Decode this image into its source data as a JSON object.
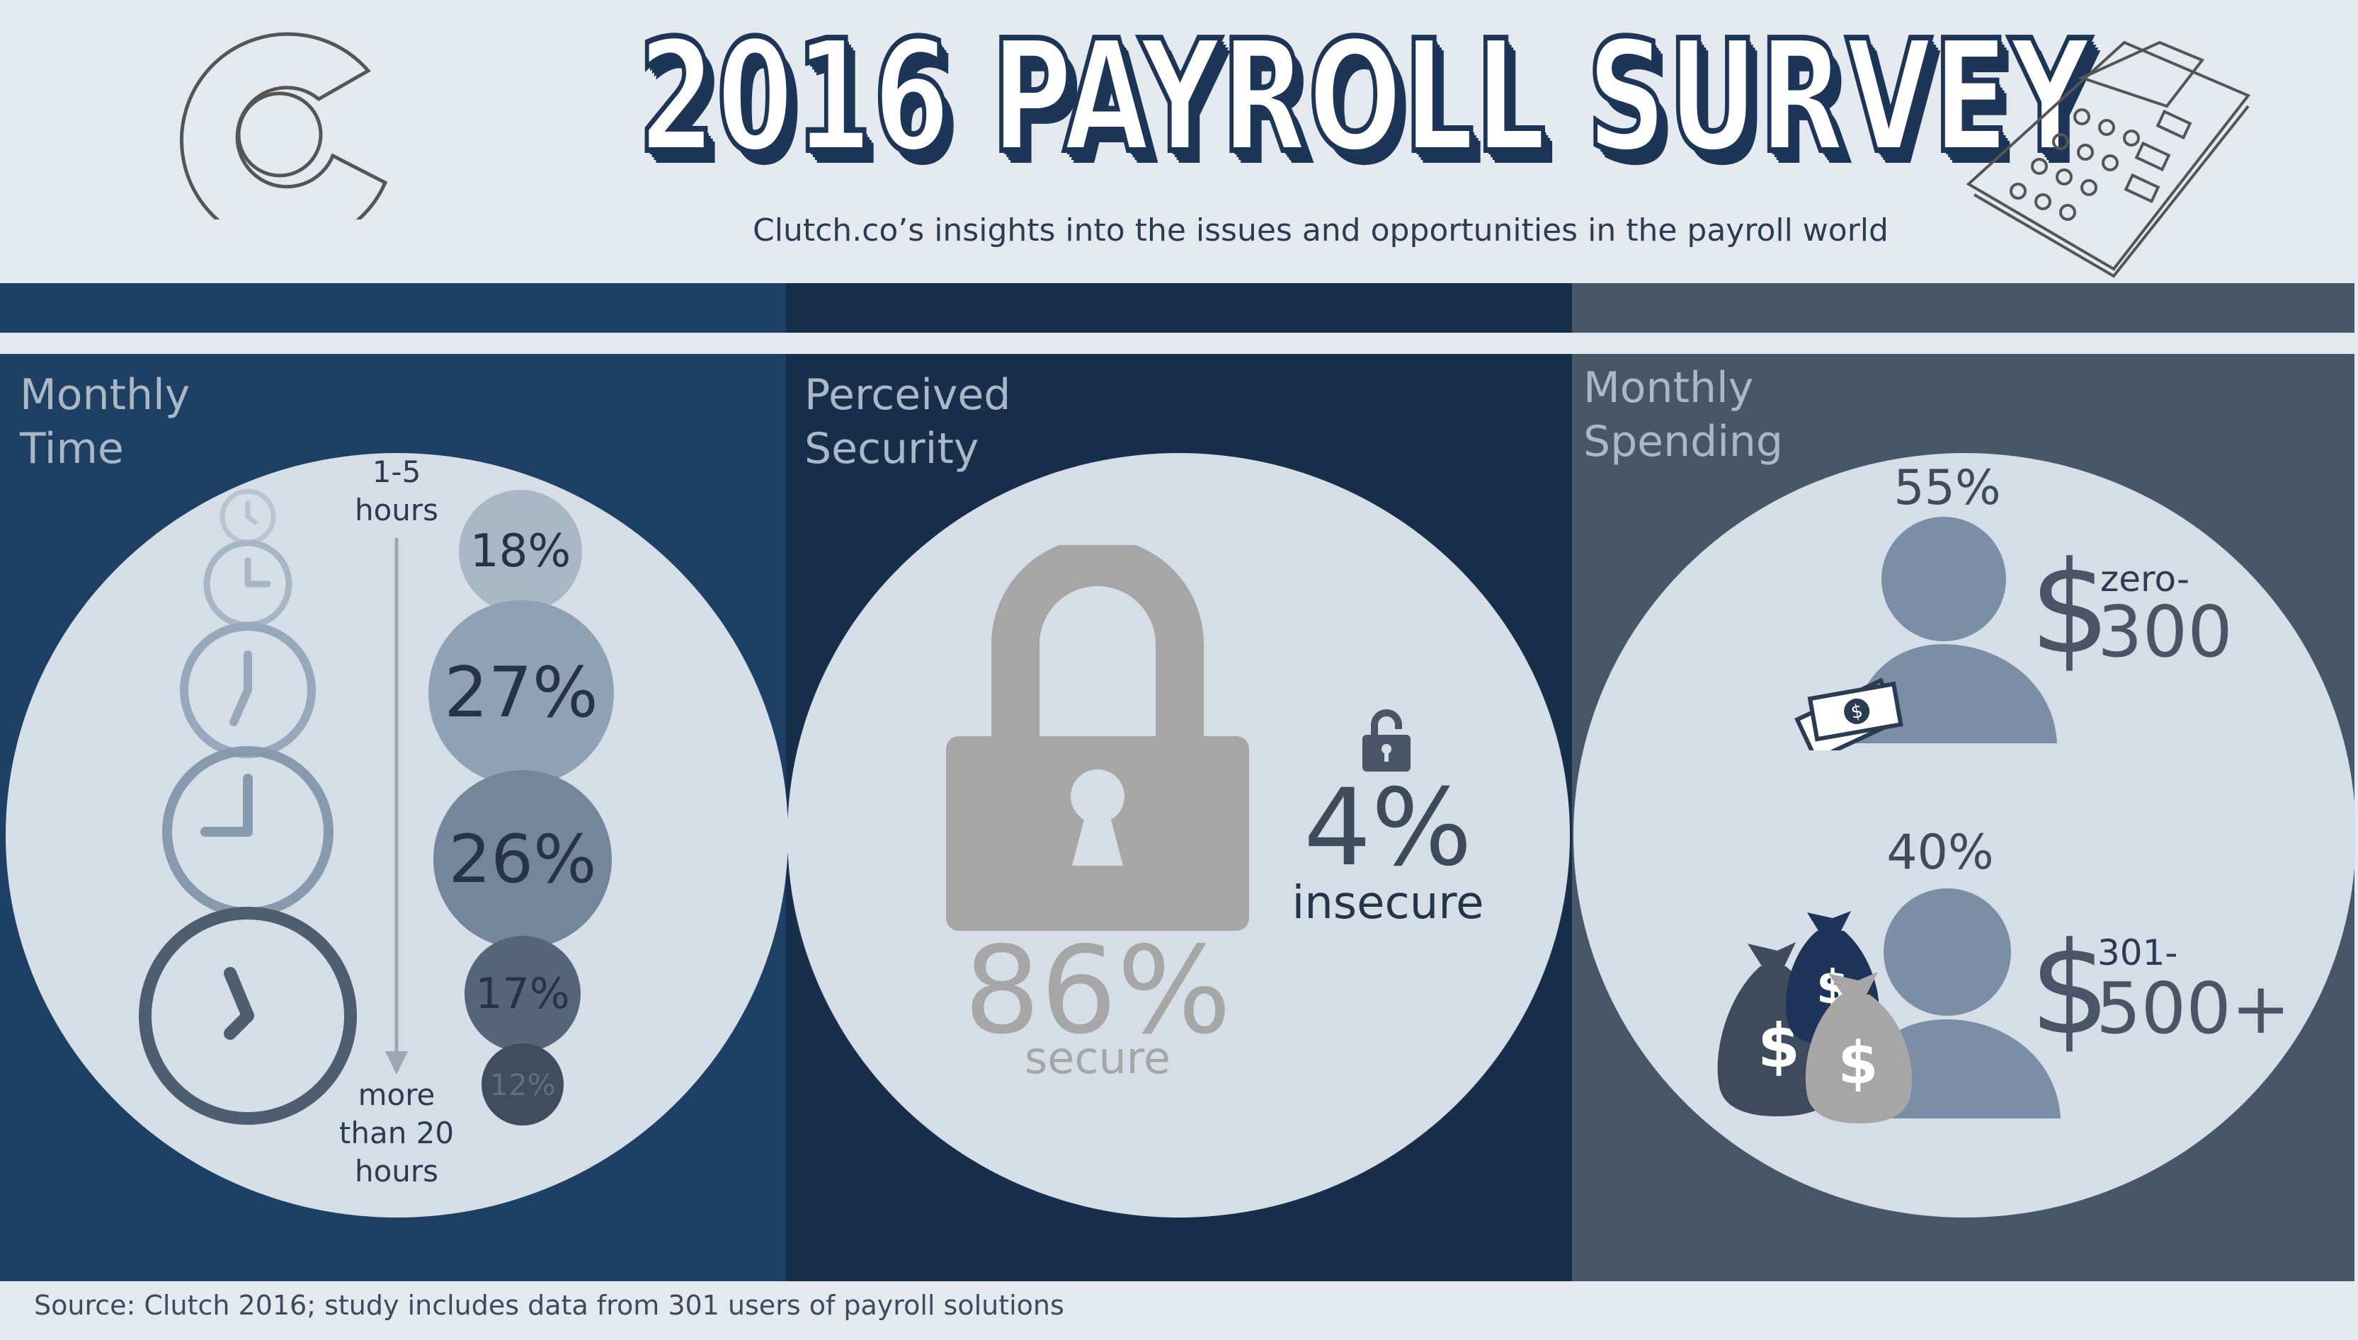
{
  "header": {
    "title": "2016 PAYROLL SURVEY",
    "subtitle": "Clutch.co’s insights into the issues and opportunities in the payroll world",
    "logo_icon": "clutch-c-logo-icon",
    "calculator_icon": "calculator-icon"
  },
  "colors": {
    "background": "#e3e9ee",
    "panel_time": "#1e4065",
    "panel_security": "#182f4c",
    "panel_spending": "#475768",
    "circle": "#d5dee6",
    "title_outline": "#1d3557"
  },
  "monthly_time": {
    "label_line1": "Monthly",
    "label_line2": "Time",
    "top_label_line1": "1-5",
    "top_label_line2": "hours",
    "bottom_label_line1": "more",
    "bottom_label_line2": "than 20",
    "bottom_label_line3": "hours",
    "bubbles": [
      {
        "label": "18%",
        "value": 18,
        "color": "#a8b7c6"
      },
      {
        "label": "27%",
        "value": 27,
        "color": "#8fa1b4"
      },
      {
        "label": "26%",
        "value": 26,
        "color": "#74869b"
      },
      {
        "label": "17%",
        "value": 17,
        "color": "#56667a"
      },
      {
        "label": "12%",
        "value": 12,
        "color": "#3f4d5f"
      }
    ]
  },
  "perceived_security": {
    "label_line1": "Perceived",
    "label_line2": "Security",
    "secure_value": "86%",
    "secure_label": "secure",
    "insecure_value": "4%",
    "insecure_label": "insecure"
  },
  "monthly_spending": {
    "label_line1": "Monthly",
    "label_line2": "Spending",
    "tier1_percent": "55%",
    "tier1_dollar": "$",
    "tier1_range_top": "zero-",
    "tier1_range_bottom": "300",
    "tier2_percent": "40%",
    "tier2_dollar": "$",
    "tier2_range_top": "301-",
    "tier2_range_bottom": "500+",
    "bag_symbol": "$"
  },
  "footer": {
    "source": "Source: Clutch 2016; study includes data from 301 users of payroll solutions"
  }
}
